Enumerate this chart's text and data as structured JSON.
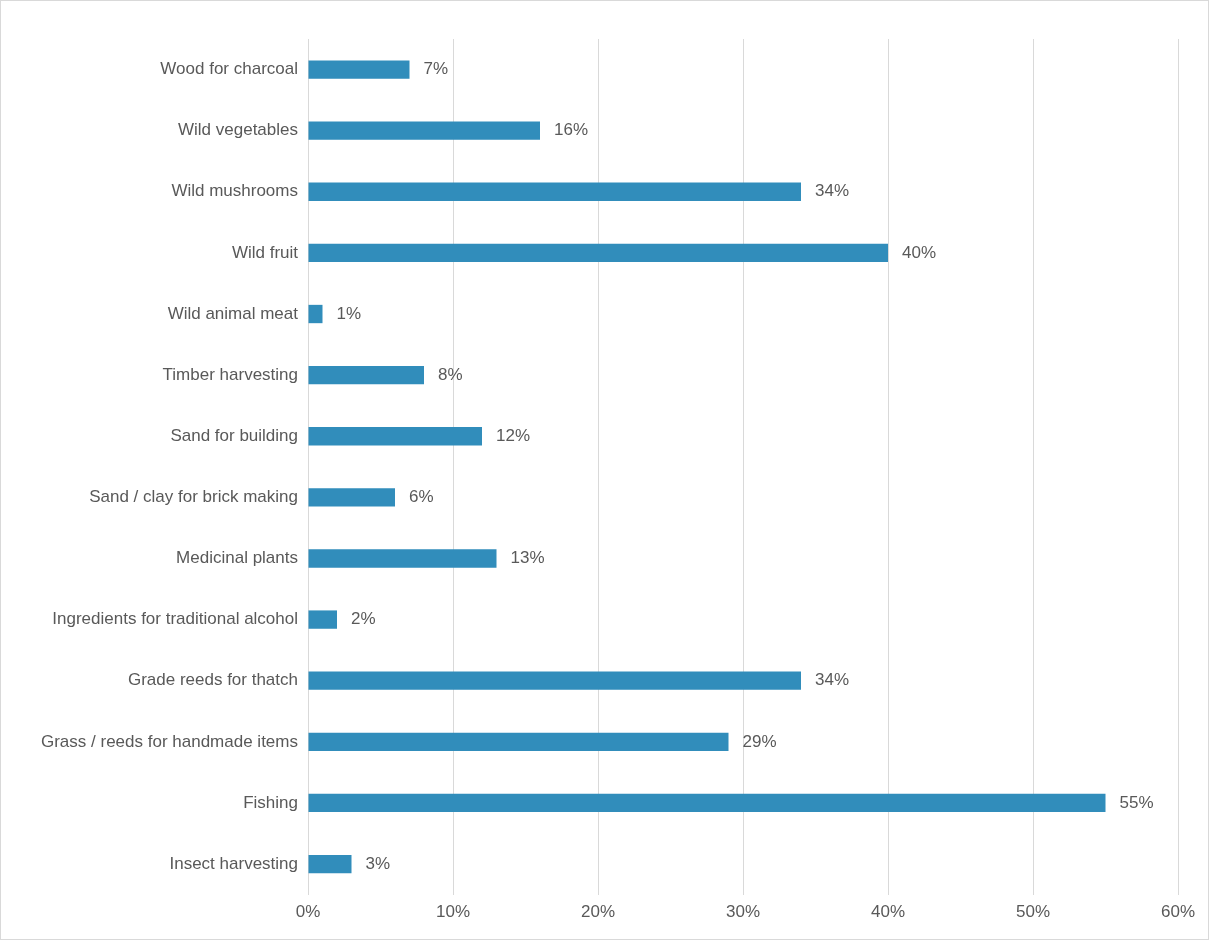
{
  "chart_data": {
    "type": "bar",
    "orientation": "horizontal",
    "color": "#318dbb",
    "categories": [
      "Wood for charcoal",
      "Wild vegetables",
      "Wild mushrooms",
      "Wild fruit",
      "Wild animal meat",
      "Timber harvesting",
      "Sand for building",
      "Sand / clay for brick making",
      "Medicinal plants",
      "Ingredients for traditional alcohol",
      "Grade reeds for thatch",
      "Grass / reeds for handmade items",
      "Fishing",
      "Insect harvesting"
    ],
    "values": [
      7,
      16,
      34,
      40,
      1,
      8,
      12,
      6,
      13,
      2,
      34,
      29,
      55,
      3
    ],
    "value_labels": [
      "7%",
      "16%",
      "34%",
      "40%",
      "1%",
      "8%",
      "12%",
      "6%",
      "13%",
      "2%",
      "34%",
      "29%",
      "55%",
      "3%"
    ],
    "xlim": [
      0,
      60
    ],
    "xticks": [
      {
        "value": 0,
        "label": "0%"
      },
      {
        "value": 10,
        "label": "10%"
      },
      {
        "value": 20,
        "label": "20%"
      },
      {
        "value": 30,
        "label": "30%"
      },
      {
        "value": 40,
        "label": "40%"
      },
      {
        "value": 50,
        "label": "50%"
      },
      {
        "value": 60,
        "label": "60%"
      }
    ],
    "grid": "x",
    "legend": false
  }
}
